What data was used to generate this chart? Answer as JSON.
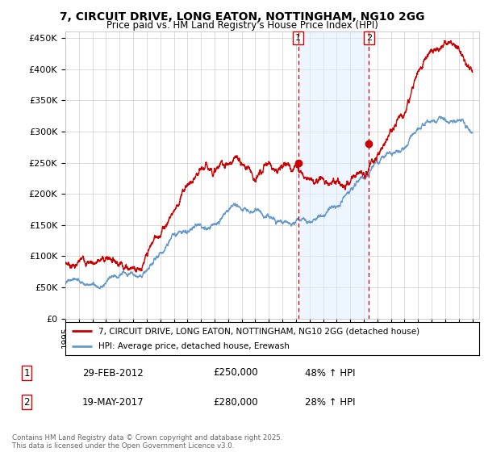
{
  "title_line1": "7, CIRCUIT DRIVE, LONG EATON, NOTTINGHAM, NG10 2GG",
  "title_line2": "Price paid vs. HM Land Registry's House Price Index (HPI)",
  "ylabel_ticks": [
    "£0",
    "£50K",
    "£100K",
    "£150K",
    "£200K",
    "£250K",
    "£300K",
    "£350K",
    "£400K",
    "£450K"
  ],
  "ytick_values": [
    0,
    50000,
    100000,
    150000,
    200000,
    250000,
    300000,
    350000,
    400000,
    450000
  ],
  "ylim": [
    0,
    460000
  ],
  "xlim_start": 1995.0,
  "xlim_end": 2025.5,
  "red_line_color": "#cc0000",
  "blue_line_color": "#6699cc",
  "blue_fill_color": "#ddeeff",
  "marker1_date": 2012.16,
  "marker1_value": 250000,
  "marker2_date": 2017.38,
  "marker2_value": 280000,
  "vline_color": "#cc0000",
  "legend_label1": "7, CIRCUIT DRIVE, LONG EATON, NOTTINGHAM, NG10 2GG (detached house)",
  "legend_label2": "HPI: Average price, detached house, Erewash",
  "table_entries": [
    {
      "num": "1",
      "date": "29-FEB-2012",
      "price": "£250,000",
      "hpi": "48% ↑ HPI"
    },
    {
      "num": "2",
      "date": "19-MAY-2017",
      "price": "£280,000",
      "hpi": "28% ↑ HPI"
    }
  ],
  "footnote": "Contains HM Land Registry data © Crown copyright and database right 2025.\nThis data is licensed under the Open Government Licence v3.0.",
  "background_color": "#ffffff",
  "plot_bg_color": "#ffffff",
  "grid_color": "#cccccc",
  "red_keypoints": [
    [
      1995.0,
      90000
    ],
    [
      1996.0,
      91000
    ],
    [
      1997.0,
      95000
    ],
    [
      1998.0,
      100000
    ],
    [
      1999.0,
      105000
    ],
    [
      2000.0,
      110000
    ],
    [
      2001.0,
      130000
    ],
    [
      2002.0,
      165000
    ],
    [
      2003.0,
      210000
    ],
    [
      2004.0,
      255000
    ],
    [
      2005.0,
      250000
    ],
    [
      2006.0,
      255000
    ],
    [
      2007.0,
      265000
    ],
    [
      2007.5,
      265000
    ],
    [
      2008.0,
      255000
    ],
    [
      2009.0,
      240000
    ],
    [
      2010.0,
      245000
    ],
    [
      2011.0,
      248000
    ],
    [
      2012.16,
      250000
    ],
    [
      2013.0,
      252000
    ],
    [
      2014.0,
      255000
    ],
    [
      2015.0,
      260000
    ],
    [
      2016.0,
      270000
    ],
    [
      2017.0,
      275000
    ],
    [
      2017.38,
      280000
    ],
    [
      2018.0,
      295000
    ],
    [
      2019.0,
      320000
    ],
    [
      2020.0,
      330000
    ],
    [
      2021.0,
      370000
    ],
    [
      2022.0,
      410000
    ],
    [
      2023.0,
      425000
    ],
    [
      2024.0,
      420000
    ],
    [
      2025.0,
      395000
    ]
  ],
  "blue_keypoints": [
    [
      1995.0,
      55000
    ],
    [
      1996.0,
      57000
    ],
    [
      1997.0,
      62000
    ],
    [
      1998.0,
      68000
    ],
    [
      1999.0,
      75000
    ],
    [
      2000.0,
      83000
    ],
    [
      2001.0,
      97000
    ],
    [
      2002.0,
      115000
    ],
    [
      2003.0,
      135000
    ],
    [
      2004.0,
      155000
    ],
    [
      2005.0,
      165000
    ],
    [
      2006.0,
      175000
    ],
    [
      2007.0,
      185000
    ],
    [
      2008.0,
      185000
    ],
    [
      2009.0,
      172000
    ],
    [
      2010.0,
      168000
    ],
    [
      2011.0,
      165000
    ],
    [
      2012.0,
      163000
    ],
    [
      2013.0,
      168000
    ],
    [
      2014.0,
      180000
    ],
    [
      2015.0,
      195000
    ],
    [
      2016.0,
      215000
    ],
    [
      2017.0,
      230000
    ],
    [
      2018.0,
      250000
    ],
    [
      2019.0,
      260000
    ],
    [
      2020.0,
      265000
    ],
    [
      2021.0,
      285000
    ],
    [
      2022.0,
      305000
    ],
    [
      2023.0,
      308000
    ],
    [
      2024.0,
      300000
    ],
    [
      2025.0,
      298000
    ]
  ]
}
